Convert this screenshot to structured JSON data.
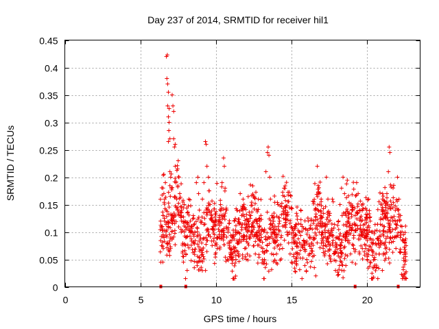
{
  "chart_data": {
    "type": "scatter",
    "title": "Day 237 of 2014, SRMTID for receiver hil1",
    "xlabel": "GPS time / hours",
    "ylabel": "SRMTID / TECUs",
    "xlim": [
      0,
      23.5
    ],
    "ylim": [
      0,
      0.45
    ],
    "xticks": [
      0,
      5,
      10,
      15,
      20
    ],
    "yticks": [
      0,
      0.05,
      0.1,
      0.15,
      0.2,
      0.25,
      0.3,
      0.35,
      0.4,
      0.45
    ],
    "ytick_labels": [
      "0",
      "0.05",
      "0.1",
      "0.15",
      "0.2",
      "0.25",
      "0.3",
      "0.35",
      "0.4",
      "0.45"
    ],
    "grid": true,
    "marker": "plus",
    "color": "#ee0000",
    "series": [
      {
        "points": [
          [
            6.35,
            0.045
          ],
          [
            6.4,
            0.075
          ],
          [
            6.45,
            0.11
          ],
          [
            6.5,
            0.13
          ],
          [
            6.5,
            0.095
          ],
          [
            6.55,
            0.17
          ],
          [
            6.6,
            0.16
          ],
          [
            6.6,
            0.12
          ],
          [
            6.65,
            0.19
          ],
          [
            6.7,
            0.14
          ],
          [
            6.72,
            0.42
          ],
          [
            6.78,
            0.423
          ],
          [
            6.75,
            0.38
          ],
          [
            6.8,
            0.37
          ],
          [
            6.85,
            0.355
          ],
          [
            6.8,
            0.33
          ],
          [
            6.9,
            0.325
          ],
          [
            6.85,
            0.31
          ],
          [
            6.9,
            0.3
          ],
          [
            6.88,
            0.285
          ],
          [
            6.95,
            0.27
          ],
          [
            6.85,
            0.265
          ],
          [
            6.95,
            0.21
          ],
          [
            7.0,
            0.2
          ],
          [
            7.05,
            0.18
          ],
          [
            7.1,
            0.35
          ],
          [
            7.15,
            0.33
          ],
          [
            7.2,
            0.32
          ],
          [
            7.2,
            0.27
          ],
          [
            7.25,
            0.255
          ],
          [
            7.3,
            0.26
          ],
          [
            7.3,
            0.22
          ],
          [
            7.35,
            0.19
          ],
          [
            7.4,
            0.16
          ],
          [
            7.45,
            0.14
          ],
          [
            7.5,
            0.23
          ],
          [
            7.55,
            0.2
          ],
          [
            7.6,
            0.17
          ],
          [
            7.65,
            0.13
          ],
          [
            7.7,
            0.1
          ],
          [
            7.8,
            0.065
          ],
          [
            7.85,
            0.055
          ],
          [
            7.9,
            0.15
          ],
          [
            7.95,
            0.12
          ],
          [
            8.0,
            0.09
          ],
          [
            8.1,
            0.135
          ],
          [
            8.2,
            0.16
          ],
          [
            8.3,
            0.12
          ],
          [
            8.4,
            0.11
          ],
          [
            8.5,
            0.13
          ],
          [
            8.6,
            0.1
          ],
          [
            8.7,
            0.19
          ],
          [
            8.8,
            0.2
          ],
          [
            8.85,
            0.17
          ],
          [
            8.9,
            0.14
          ],
          [
            9.0,
            0.12
          ],
          [
            9.1,
            0.16
          ],
          [
            9.2,
            0.19
          ],
          [
            9.3,
            0.265
          ],
          [
            9.35,
            0.26
          ],
          [
            9.4,
            0.22
          ],
          [
            9.5,
            0.2
          ],
          [
            9.55,
            0.175
          ],
          [
            9.6,
            0.15
          ],
          [
            9.7,
            0.13
          ],
          [
            9.8,
            0.11
          ],
          [
            9.9,
            0.095
          ],
          [
            10.0,
            0.08
          ],
          [
            10.1,
            0.07
          ],
          [
            10.2,
            0.12
          ],
          [
            10.3,
            0.15
          ],
          [
            10.4,
            0.19
          ],
          [
            10.5,
            0.235
          ],
          [
            10.55,
            0.22
          ],
          [
            10.6,
            0.18
          ],
          [
            10.7,
            0.14
          ],
          [
            10.8,
            0.1
          ],
          [
            10.9,
            0.08
          ],
          [
            11.0,
            0.06
          ],
          [
            11.1,
            0.09
          ],
          [
            11.2,
            0.12
          ],
          [
            11.3,
            0.1
          ],
          [
            11.4,
            0.08
          ],
          [
            11.5,
            0.06
          ],
          [
            11.6,
            0.17
          ],
          [
            11.7,
            0.13
          ],
          [
            11.8,
            0.09
          ],
          [
            11.9,
            0.07
          ],
          [
            12.0,
            0.05
          ],
          [
            12.1,
            0.08
          ],
          [
            12.2,
            0.11
          ],
          [
            12.3,
            0.13
          ],
          [
            12.4,
            0.1
          ],
          [
            12.5,
            0.075
          ],
          [
            12.6,
            0.06
          ],
          [
            12.7,
            0.14
          ],
          [
            12.8,
            0.16
          ],
          [
            12.9,
            0.12
          ],
          [
            13.0,
            0.09
          ],
          [
            13.1,
            0.07
          ],
          [
            13.2,
            0.05
          ],
          [
            13.3,
            0.21
          ],
          [
            13.4,
            0.245
          ],
          [
            13.45,
            0.255
          ],
          [
            13.5,
            0.24
          ],
          [
            13.55,
            0.2
          ],
          [
            13.6,
            0.16
          ],
          [
            13.7,
            0.13
          ],
          [
            13.8,
            0.1
          ],
          [
            13.9,
            0.08
          ],
          [
            14.0,
            0.06
          ],
          [
            14.1,
            0.15
          ],
          [
            14.2,
            0.12
          ],
          [
            14.3,
            0.09
          ],
          [
            14.4,
            0.07
          ],
          [
            14.5,
            0.18
          ],
          [
            14.6,
            0.14
          ],
          [
            14.7,
            0.1
          ],
          [
            14.8,
            0.08
          ],
          [
            14.9,
            0.06
          ],
          [
            15.0,
            0.045
          ],
          [
            15.1,
            0.09
          ],
          [
            15.2,
            0.11
          ],
          [
            15.3,
            0.08
          ],
          [
            15.4,
            0.06
          ],
          [
            15.5,
            0.1
          ],
          [
            15.6,
            0.14
          ],
          [
            15.7,
            0.11
          ],
          [
            15.8,
            0.085
          ],
          [
            15.9,
            0.065
          ],
          [
            16.0,
            0.05
          ],
          [
            16.1,
            0.12
          ],
          [
            16.2,
            0.09
          ],
          [
            16.3,
            0.07
          ],
          [
            16.4,
            0.055
          ],
          [
            16.5,
            0.035
          ],
          [
            16.6,
            0.02
          ],
          [
            16.7,
            0.22
          ],
          [
            16.8,
            0.17
          ],
          [
            16.9,
            0.13
          ],
          [
            17.0,
            0.1
          ],
          [
            17.1,
            0.08
          ],
          [
            17.2,
            0.06
          ],
          [
            17.3,
            0.2
          ],
          [
            17.4,
            0.16
          ],
          [
            17.5,
            0.13
          ],
          [
            17.6,
            0.1
          ],
          [
            17.7,
            0.08
          ],
          [
            17.8,
            0.06
          ],
          [
            17.9,
            0.03
          ],
          [
            18.0,
            0.09
          ],
          [
            18.1,
            0.12
          ],
          [
            18.2,
            0.15
          ],
          [
            18.3,
            0.18
          ],
          [
            18.4,
            0.2
          ],
          [
            18.5,
            0.17
          ],
          [
            18.6,
            0.13
          ],
          [
            18.7,
            0.1
          ],
          [
            18.8,
            0.08
          ],
          [
            18.9,
            0.06
          ],
          [
            19.0,
            0.045
          ],
          [
            19.1,
            0.07
          ],
          [
            19.2,
            0.13
          ],
          [
            19.3,
            0.19
          ],
          [
            19.4,
            0.17
          ],
          [
            19.5,
            0.14
          ],
          [
            19.6,
            0.12
          ],
          [
            19.7,
            0.1
          ],
          [
            19.8,
            0.09
          ],
          [
            19.9,
            0.07
          ],
          [
            20.0,
            0.05
          ],
          [
            20.1,
            0.16
          ],
          [
            20.2,
            0.12
          ],
          [
            20.3,
            0.1
          ],
          [
            20.4,
            0.08
          ],
          [
            20.5,
            0.05
          ],
          [
            20.6,
            0.035
          ],
          [
            20.7,
            0.015
          ],
          [
            20.8,
            0.06
          ],
          [
            20.9,
            0.08
          ],
          [
            21.0,
            0.03
          ],
          [
            21.1,
            0.11
          ],
          [
            21.2,
            0.14
          ],
          [
            21.3,
            0.17
          ],
          [
            21.4,
            0.21
          ],
          [
            21.45,
            0.255
          ],
          [
            21.5,
            0.245
          ],
          [
            21.6,
            0.15
          ],
          [
            21.7,
            0.12
          ],
          [
            21.8,
            0.09
          ],
          [
            21.9,
            0.07
          ],
          [
            22.0,
            0.2
          ],
          [
            22.1,
            0.16
          ],
          [
            22.2,
            0.13
          ],
          [
            22.3,
            0.11
          ],
          [
            22.4,
            0.095
          ],
          [
            22.5,
            0.08
          ],
          [
            22.55,
            0.06
          ],
          [
            22.0,
            0.12
          ],
          [
            21.5,
            0.1
          ]
        ]
      }
    ],
    "point_cloud": {
      "base_windows": [
        [
          6.3,
          22.6
        ]
      ],
      "dense_range_y": [
        0.04,
        0.2
      ],
      "count": 1400
    },
    "zero_markers": [
      6.35,
      8.0,
      19.2,
      22.05
    ]
  }
}
